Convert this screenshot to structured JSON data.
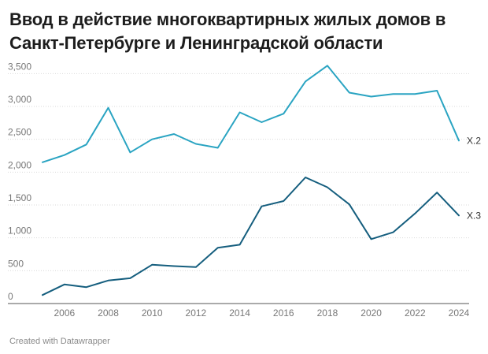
{
  "title": {
    "line1": "Ввод в действие многоквартирных жилых домов в",
    "line2": "Санкт-Петербурге и Ленинградской области"
  },
  "footer": "Created with Datawrapper",
  "colors": {
    "series_1": "#2aa4c2",
    "series_2": "#155e7e",
    "grid": "#d9d9d9",
    "axis_text": "#777777"
  },
  "chart_data": {
    "type": "line",
    "x": [
      2005,
      2006,
      2007,
      2008,
      2009,
      2010,
      2011,
      2012,
      2013,
      2014,
      2015,
      2016,
      2017,
      2018,
      2019,
      2020,
      2021,
      2022,
      2023,
      2024
    ],
    "x_ticks": [
      2006,
      2008,
      2010,
      2012,
      2014,
      2016,
      2018,
      2020,
      2022,
      2024
    ],
    "y_ticks": [
      0,
      500,
      1000,
      1500,
      2000,
      2500,
      3000,
      3500
    ],
    "y_tick_labels": [
      "0",
      "500",
      "1,000",
      "1,500",
      "2,000",
      "2,500",
      "3,000",
      "3,500"
    ],
    "ylim": [
      0,
      3600
    ],
    "grid": true,
    "series": [
      {
        "name": "X.2",
        "values": [
          2150,
          2260,
          2420,
          2980,
          2300,
          2500,
          2580,
          2430,
          2370,
          2910,
          2760,
          2890,
          3380,
          3620,
          3210,
          3150,
          3190,
          3190,
          3240,
          2480
        ]
      },
      {
        "name": "X.3",
        "values": [
          130,
          290,
          250,
          350,
          385,
          590,
          570,
          555,
          850,
          895,
          1480,
          1560,
          1920,
          1770,
          1510,
          980,
          1085,
          1370,
          1690,
          1340
        ]
      }
    ]
  }
}
